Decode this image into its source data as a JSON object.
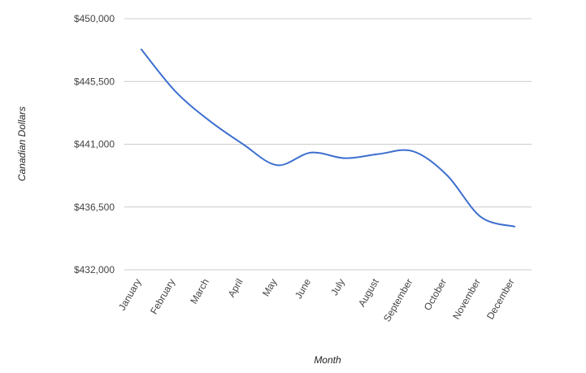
{
  "chart_data": {
    "type": "line",
    "title": "",
    "xlabel": "Month",
    "ylabel": "Canadian Dollars",
    "categories": [
      "January",
      "February",
      "March",
      "April",
      "May",
      "June",
      "July",
      "August",
      "September",
      "October",
      "November",
      "December"
    ],
    "series": [
      {
        "values": [
          447800,
          444800,
          442700,
          441000,
          439500,
          440400,
          440000,
          440300,
          440500,
          438800,
          435800,
          435100
        ],
        "color": "#3d6fcf"
      }
    ],
    "ylim": [
      432000,
      450000
    ],
    "yticks": [
      432000,
      436500,
      441000,
      445500,
      450000
    ],
    "ytick_labels": [
      "$432,000",
      "$436,500",
      "$441,000",
      "$445,500",
      "$450,000"
    ],
    "grid": true,
    "legend": "none"
  }
}
